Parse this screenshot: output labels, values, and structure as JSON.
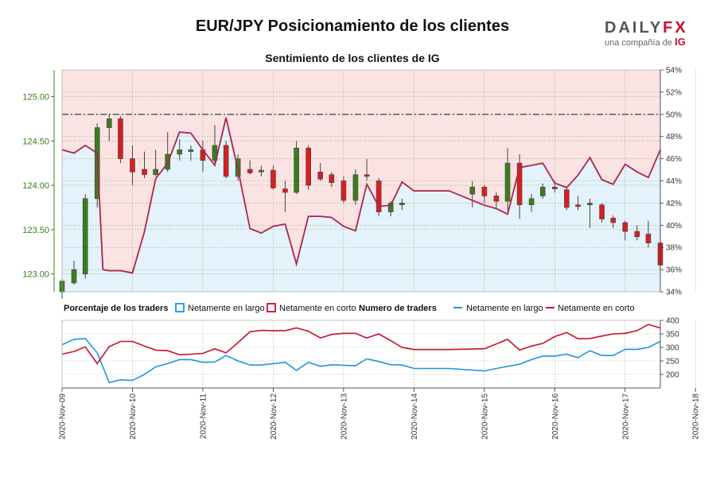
{
  "header": {
    "title": "EUR/JPY Posicionamiento de los clientes",
    "subtitle": "Sentimiento de los clientes de IG",
    "logo_main_a": "DAILY",
    "logo_main_b": "FX",
    "logo_sub_a": "una compañía de ",
    "logo_sub_b": "IG"
  },
  "colors": {
    "long": "#1e96dc",
    "short": "#c8102e",
    "long_fill": "#e3f2fb",
    "short_fill": "#fbe3e3",
    "candle_up": "#3a7d1e",
    "candle_down": "#d81e1e"
  },
  "legend": {
    "pct_title": "Porcentaje de los traders",
    "long_label": "Netamente en largo",
    "short_label": "Netamente en corto",
    "count_title": "Numero de traders",
    "line_long_label": "Netamente en largo",
    "line_short_label": "Netamente en corto"
  },
  "chart_data": [
    {
      "type": "candlestick",
      "name": "EUR/JPY price",
      "y_axis": "left",
      "ylim": [
        122.8,
        125.3
      ],
      "yticks": [
        "123.00",
        "123.50",
        "124.00",
        "124.50",
        "125.00"
      ],
      "x_dates": [
        "2020-Nov-09",
        "2020-Nov-10",
        "2020-Nov-11",
        "2020-Nov-12",
        "2020-Nov-13",
        "2020-Nov-14",
        "2020-Nov-15",
        "2020-Nov-16",
        "2020-Nov-17",
        "2020-Nov-18"
      ],
      "candles": [
        {
          "t": 0.0,
          "o": 122.8,
          "h": 122.95,
          "l": 122.72,
          "c": 122.92
        },
        {
          "t": 0.17,
          "o": 122.9,
          "h": 123.15,
          "l": 122.88,
          "c": 123.05
        },
        {
          "t": 0.33,
          "o": 123.0,
          "h": 123.9,
          "l": 122.95,
          "c": 123.85
        },
        {
          "t": 0.5,
          "o": 123.85,
          "h": 124.7,
          "l": 123.75,
          "c": 124.65
        },
        {
          "t": 0.67,
          "o": 124.65,
          "h": 124.8,
          "l": 124.5,
          "c": 124.75
        },
        {
          "t": 0.83,
          "o": 124.75,
          "h": 124.78,
          "l": 124.25,
          "c": 124.3
        },
        {
          "t": 1.0,
          "o": 124.3,
          "h": 124.45,
          "l": 124.0,
          "c": 124.15
        },
        {
          "t": 1.17,
          "o": 124.18,
          "h": 124.38,
          "l": 124.08,
          "c": 124.12
        },
        {
          "t": 1.33,
          "o": 124.12,
          "h": 124.4,
          "l": 124.1,
          "c": 124.18
        },
        {
          "t": 1.5,
          "o": 124.18,
          "h": 124.6,
          "l": 124.15,
          "c": 124.35
        },
        {
          "t": 1.67,
          "o": 124.35,
          "h": 124.52,
          "l": 124.28,
          "c": 124.4
        },
        {
          "t": 1.83,
          "o": 124.38,
          "h": 124.45,
          "l": 124.28,
          "c": 124.4
        },
        {
          "t": 2.0,
          "o": 124.4,
          "h": 124.5,
          "l": 124.15,
          "c": 124.28
        },
        {
          "t": 2.17,
          "o": 124.28,
          "h": 124.68,
          "l": 124.25,
          "c": 124.45
        },
        {
          "t": 2.33,
          "o": 124.45,
          "h": 124.5,
          "l": 124.08,
          "c": 124.1
        },
        {
          "t": 2.5,
          "o": 124.1,
          "h": 124.35,
          "l": 124.05,
          "c": 124.3
        },
        {
          "t": 2.67,
          "o": 124.18,
          "h": 124.28,
          "l": 124.12,
          "c": 124.14
        },
        {
          "t": 2.83,
          "o": 124.15,
          "h": 124.22,
          "l": 124.1,
          "c": 124.17
        },
        {
          "t": 3.0,
          "o": 124.17,
          "h": 124.22,
          "l": 123.95,
          "c": 123.97
        },
        {
          "t": 3.17,
          "o": 123.96,
          "h": 124.05,
          "l": 123.7,
          "c": 123.92
        },
        {
          "t": 3.33,
          "o": 123.92,
          "h": 124.5,
          "l": 123.9,
          "c": 124.42
        },
        {
          "t": 3.5,
          "o": 124.42,
          "h": 124.45,
          "l": 123.95,
          "c": 124.0
        },
        {
          "t": 3.67,
          "o": 124.15,
          "h": 124.25,
          "l": 124.05,
          "c": 124.07
        },
        {
          "t": 3.83,
          "o": 124.12,
          "h": 124.15,
          "l": 123.98,
          "c": 124.03
        },
        {
          "t": 4.0,
          "o": 124.05,
          "h": 124.1,
          "l": 123.8,
          "c": 123.83
        },
        {
          "t": 4.17,
          "o": 123.83,
          "h": 124.18,
          "l": 123.78,
          "c": 124.12
        },
        {
          "t": 4.33,
          "o": 124.12,
          "h": 124.3,
          "l": 124.05,
          "c": 124.1
        },
        {
          "t": 4.5,
          "o": 124.05,
          "h": 124.08,
          "l": 123.65,
          "c": 123.7
        },
        {
          "t": 4.67,
          "o": 123.7,
          "h": 123.82,
          "l": 123.65,
          "c": 123.8
        },
        {
          "t": 4.83,
          "o": 123.78,
          "h": 123.85,
          "l": 123.72,
          "c": 123.8
        },
        {
          "t": 5.83,
          "o": 123.9,
          "h": 124.05,
          "l": 123.75,
          "c": 123.98
        },
        {
          "t": 6.0,
          "o": 123.98,
          "h": 124.0,
          "l": 123.8,
          "c": 123.88
        },
        {
          "t": 6.17,
          "o": 123.88,
          "h": 123.92,
          "l": 123.75,
          "c": 123.82
        },
        {
          "t": 6.33,
          "o": 123.82,
          "h": 124.42,
          "l": 123.72,
          "c": 124.25
        },
        {
          "t": 6.5,
          "o": 124.25,
          "h": 124.35,
          "l": 123.62,
          "c": 123.78
        },
        {
          "t": 6.67,
          "o": 123.78,
          "h": 123.9,
          "l": 123.7,
          "c": 123.85
        },
        {
          "t": 6.83,
          "o": 123.88,
          "h": 124.02,
          "l": 123.85,
          "c": 123.98
        },
        {
          "t": 7.0,
          "o": 123.98,
          "h": 124.05,
          "l": 123.92,
          "c": 123.96
        },
        {
          "t": 7.17,
          "o": 123.95,
          "h": 123.98,
          "l": 123.72,
          "c": 123.75
        },
        {
          "t": 7.33,
          "o": 123.78,
          "h": 123.88,
          "l": 123.72,
          "c": 123.76
        },
        {
          "t": 7.5,
          "o": 123.78,
          "h": 123.85,
          "l": 123.52,
          "c": 123.8
        },
        {
          "t": 7.67,
          "o": 123.78,
          "h": 123.8,
          "l": 123.58,
          "c": 123.62
        },
        {
          "t": 7.83,
          "o": 123.63,
          "h": 123.66,
          "l": 123.52,
          "c": 123.58
        },
        {
          "t": 8.0,
          "o": 123.58,
          "h": 123.6,
          "l": 123.38,
          "c": 123.48
        },
        {
          "t": 8.17,
          "o": 123.48,
          "h": 123.55,
          "l": 123.38,
          "c": 123.42
        },
        {
          "t": 8.33,
          "o": 123.45,
          "h": 123.6,
          "l": 123.3,
          "c": 123.35
        },
        {
          "t": 8.5,
          "o": 123.35,
          "h": 123.5,
          "l": 123.02,
          "c": 123.1
        }
      ]
    },
    {
      "type": "line",
      "name": "Netamente en corto (%)",
      "y_axis": "right",
      "ylim": [
        34,
        54
      ],
      "yticks": [
        "34%",
        "36%",
        "38%",
        "40%",
        "42%",
        "44%",
        "46%",
        "48%",
        "50%",
        "52%",
        "54%"
      ],
      "threshold": 50,
      "points": [
        [
          0.0,
          46.8
        ],
        [
          0.17,
          46.5
        ],
        [
          0.33,
          47.2
        ],
        [
          0.5,
          46.5
        ],
        [
          0.58,
          36.0
        ],
        [
          0.67,
          35.9
        ],
        [
          0.83,
          35.9
        ],
        [
          1.0,
          35.7
        ],
        [
          1.17,
          39.4
        ],
        [
          1.33,
          44.2
        ],
        [
          1.5,
          45.6
        ],
        [
          1.67,
          48.4
        ],
        [
          1.83,
          48.3
        ],
        [
          2.0,
          46.8
        ],
        [
          2.17,
          45.4
        ],
        [
          2.33,
          49.7
        ],
        [
          2.5,
          45.0
        ],
        [
          2.67,
          39.7
        ],
        [
          2.83,
          39.3
        ],
        [
          3.0,
          39.9
        ],
        [
          3.17,
          40.1
        ],
        [
          3.33,
          36.5
        ],
        [
          3.5,
          40.8
        ],
        [
          3.67,
          40.8
        ],
        [
          3.83,
          40.7
        ],
        [
          4.0,
          39.9
        ],
        [
          4.17,
          39.5
        ],
        [
          4.33,
          43.7
        ],
        [
          4.5,
          41.7
        ],
        [
          4.67,
          41.8
        ],
        [
          4.83,
          43.9
        ],
        [
          5.0,
          43.1
        ],
        [
          5.5,
          43.1
        ],
        [
          6.0,
          41.8
        ],
        [
          6.17,
          41.5
        ],
        [
          6.33,
          41.0
        ],
        [
          6.5,
          45.2
        ],
        [
          6.67,
          45.4
        ],
        [
          6.83,
          45.6
        ],
        [
          7.0,
          43.8
        ],
        [
          7.17,
          43.4
        ],
        [
          7.33,
          44.5
        ],
        [
          7.5,
          46.1
        ],
        [
          7.67,
          44.1
        ],
        [
          7.83,
          43.7
        ],
        [
          8.0,
          45.5
        ],
        [
          8.17,
          44.8
        ],
        [
          8.33,
          44.3
        ],
        [
          8.5,
          46.8
        ]
      ]
    },
    {
      "type": "line",
      "name": "Numero de traders",
      "ylim": [
        150,
        400
      ],
      "yticks": [
        "200",
        "250",
        "300",
        "350",
        "400"
      ],
      "series": [
        {
          "name": "Netamente en largo",
          "points": [
            [
              0.0,
              310
            ],
            [
              0.17,
              330
            ],
            [
              0.33,
              333
            ],
            [
              0.5,
              280
            ],
            [
              0.67,
              170
            ],
            [
              0.83,
              180
            ],
            [
              1.0,
              178
            ],
            [
              1.17,
              200
            ],
            [
              1.33,
              228
            ],
            [
              1.5,
              240
            ],
            [
              1.67,
              255
            ],
            [
              1.83,
              255
            ],
            [
              2.0,
              245
            ],
            [
              2.17,
              246
            ],
            [
              2.33,
              270
            ],
            [
              2.5,
              250
            ],
            [
              2.67,
              235
            ],
            [
              2.83,
              235
            ],
            [
              3.0,
              240
            ],
            [
              3.17,
              245
            ],
            [
              3.33,
              215
            ],
            [
              3.5,
              245
            ],
            [
              3.67,
              230
            ],
            [
              3.83,
              236
            ],
            [
              4.0,
              234
            ],
            [
              4.17,
              232
            ],
            [
              4.33,
              258
            ],
            [
              4.5,
              248
            ],
            [
              4.67,
              236
            ],
            [
              4.83,
              235
            ],
            [
              5.0,
              222
            ],
            [
              5.5,
              222
            ],
            [
              6.0,
              213
            ],
            [
              6.17,
              222
            ],
            [
              6.33,
              230
            ],
            [
              6.5,
              238
            ],
            [
              6.67,
              255
            ],
            [
              6.83,
              268
            ],
            [
              7.0,
              268
            ],
            [
              7.17,
              275
            ],
            [
              7.33,
              262
            ],
            [
              7.5,
              288
            ],
            [
              7.67,
              270
            ],
            [
              7.83,
              270
            ],
            [
              8.0,
              293
            ],
            [
              8.17,
              293
            ],
            [
              8.33,
              300
            ],
            [
              8.5,
              322
            ]
          ]
        },
        {
          "name": "Netamente en corto",
          "points": [
            [
              0.0,
              275
            ],
            [
              0.17,
              285
            ],
            [
              0.33,
              302
            ],
            [
              0.5,
              240
            ],
            [
              0.67,
              303
            ],
            [
              0.83,
              322
            ],
            [
              1.0,
              322
            ],
            [
              1.17,
              305
            ],
            [
              1.33,
              290
            ],
            [
              1.5,
              288
            ],
            [
              1.67,
              273
            ],
            [
              1.83,
              275
            ],
            [
              2.0,
              278
            ],
            [
              2.17,
              295
            ],
            [
              2.33,
              280
            ],
            [
              2.5,
              318
            ],
            [
              2.67,
              358
            ],
            [
              2.83,
              363
            ],
            [
              3.0,
              362
            ],
            [
              3.17,
              362
            ],
            [
              3.33,
              372
            ],
            [
              3.5,
              360
            ],
            [
              3.67,
              335
            ],
            [
              3.83,
              348
            ],
            [
              4.0,
              352
            ],
            [
              4.17,
              352
            ],
            [
              4.33,
              335
            ],
            [
              4.5,
              350
            ],
            [
              4.67,
              325
            ],
            [
              4.83,
              300
            ],
            [
              5.0,
              292
            ],
            [
              5.5,
              292
            ],
            [
              6.0,
              295
            ],
            [
              6.17,
              313
            ],
            [
              6.33,
              330
            ],
            [
              6.5,
              290
            ],
            [
              6.67,
              305
            ],
            [
              6.83,
              315
            ],
            [
              7.0,
              340
            ],
            [
              7.17,
              355
            ],
            [
              7.33,
              332
            ],
            [
              7.5,
              333
            ],
            [
              7.67,
              342
            ],
            [
              7.83,
              350
            ],
            [
              8.0,
              352
            ],
            [
              8.17,
              362
            ],
            [
              8.33,
              385
            ],
            [
              8.5,
              372
            ]
          ]
        }
      ]
    }
  ]
}
